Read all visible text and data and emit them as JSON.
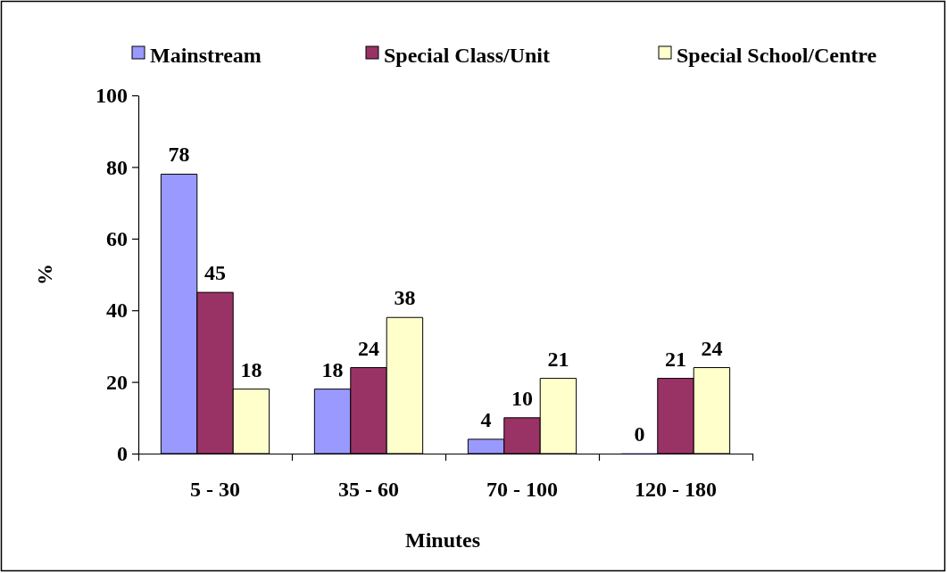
{
  "chart_data": {
    "type": "bar",
    "xlabel": "Minutes",
    "ylabel": "%",
    "categories": [
      "5 - 30",
      "35 - 60",
      "70 - 100",
      "120 - 180"
    ],
    "series": [
      {
        "name": "Mainstream",
        "color": "#9999ff",
        "values": [
          78,
          18,
          4,
          0
        ]
      },
      {
        "name": "Special Class/Unit",
        "color": "#993366",
        "values": [
          45,
          24,
          10,
          21
        ]
      },
      {
        "name": "Special School/Centre",
        "color": "#ffffcc",
        "values": [
          18,
          38,
          21,
          24
        ]
      }
    ],
    "ylim": [
      0,
      100
    ],
    "yticks": [
      0,
      20,
      40,
      60,
      80,
      100
    ],
    "grid": false,
    "legend": "top",
    "data_labels": true
  }
}
